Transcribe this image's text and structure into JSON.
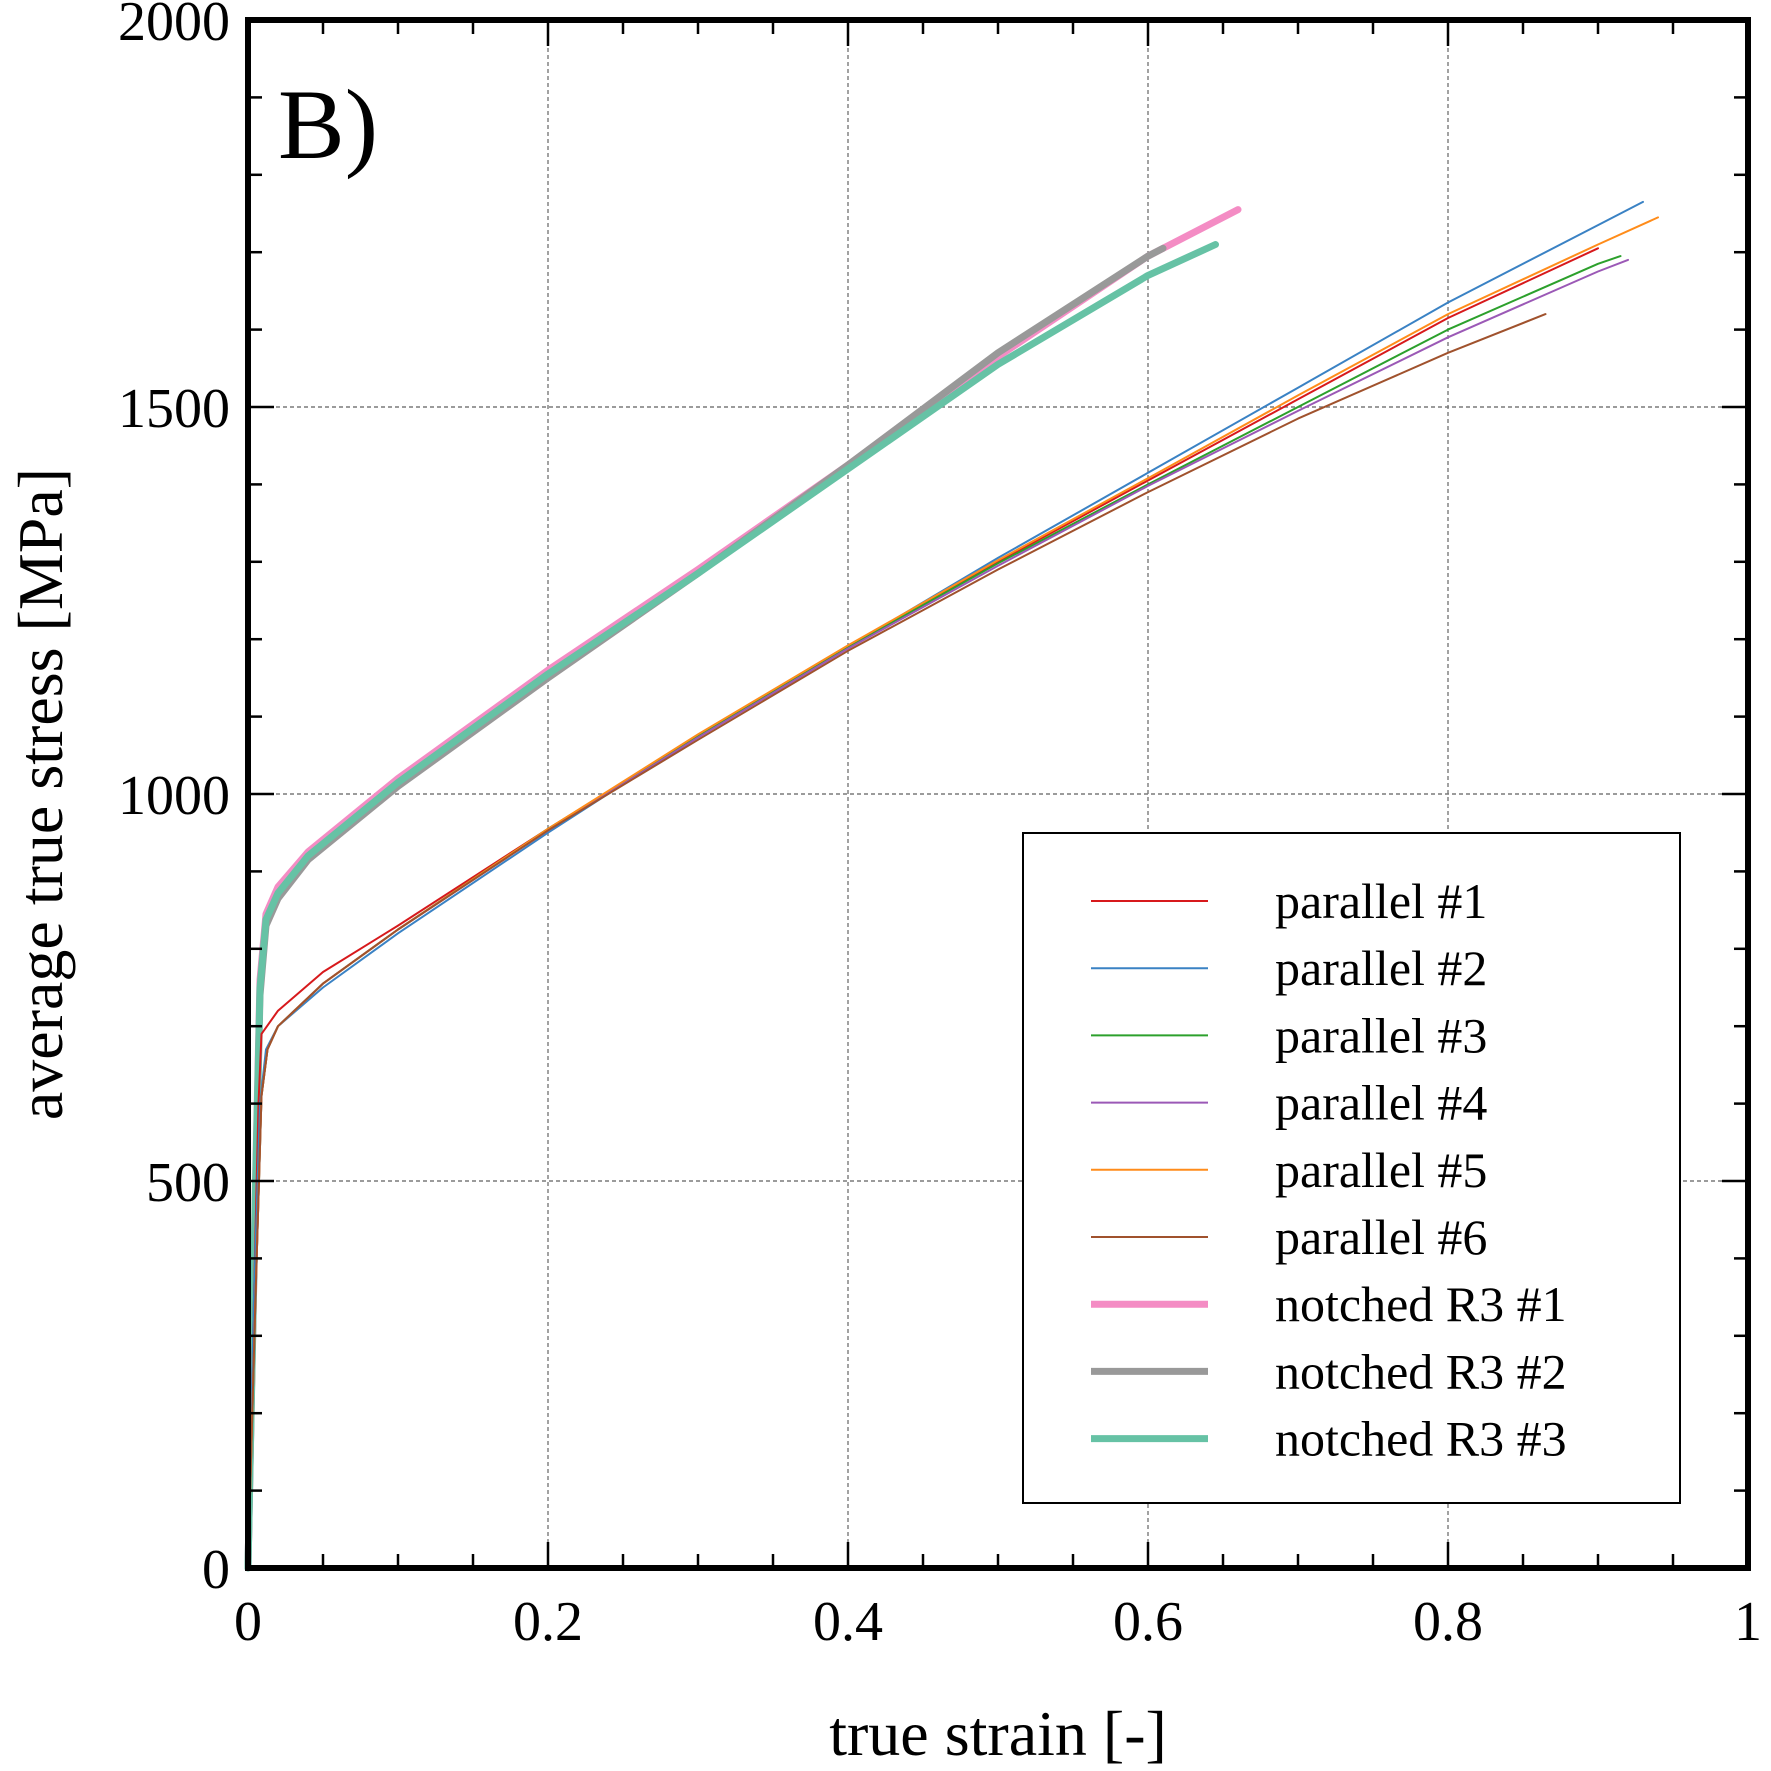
{
  "chart_data": {
    "type": "line",
    "panel_label": "B)",
    "xlabel": "true strain [-]",
    "ylabel": "average true stress [MPa]",
    "xlim": [
      0,
      1
    ],
    "ylim": [
      0,
      2000
    ],
    "x_major_ticks": [
      0,
      0.2,
      0.4,
      0.6,
      0.8,
      1
    ],
    "x_tick_labels": [
      "0",
      "0.2",
      "0.4",
      "0.6",
      "0.8",
      "1"
    ],
    "y_major_ticks": [
      0,
      500,
      1000,
      1500,
      2000
    ],
    "y_tick_labels": [
      "0",
      "500",
      "1000",
      "1500",
      "2000"
    ],
    "x_minor_step": 0.05,
    "y_minor_step": 100,
    "grid": true,
    "legend_position": "lower-right",
    "series": [
      {
        "name": "parallel #1",
        "color": "#d7191c",
        "width": "thin",
        "x": [
          0.0,
          0.004,
          0.007,
          0.009,
          0.02,
          0.05,
          0.1,
          0.2,
          0.3,
          0.4,
          0.5,
          0.6,
          0.7,
          0.8,
          0.9
        ],
        "y": [
          0,
          350,
          600,
          690,
          720,
          770,
          830,
          955,
          1075,
          1190,
          1300,
          1405,
          1510,
          1615,
          1705
        ]
      },
      {
        "name": "parallel #2",
        "color": "#3a82c4",
        "width": "thin",
        "x": [
          0.0,
          0.004,
          0.008,
          0.012,
          0.02,
          0.05,
          0.1,
          0.2,
          0.3,
          0.4,
          0.5,
          0.6,
          0.7,
          0.8,
          0.9,
          0.93
        ],
        "y": [
          0,
          350,
          600,
          670,
          700,
          750,
          820,
          950,
          1075,
          1190,
          1305,
          1415,
          1525,
          1635,
          1735,
          1765
        ]
      },
      {
        "name": "parallel #3",
        "color": "#2ca02c",
        "width": "thin",
        "x": [
          0.0,
          0.005,
          0.009,
          0.013,
          0.02,
          0.05,
          0.1,
          0.2,
          0.3,
          0.4,
          0.5,
          0.6,
          0.7,
          0.8,
          0.9,
          0.915
        ],
        "y": [
          0,
          350,
          610,
          670,
          700,
          755,
          825,
          955,
          1075,
          1190,
          1298,
          1400,
          1500,
          1600,
          1685,
          1695
        ]
      },
      {
        "name": "parallel #4",
        "color": "#9b59b6",
        "width": "thin",
        "x": [
          0.0,
          0.005,
          0.009,
          0.013,
          0.02,
          0.05,
          0.1,
          0.2,
          0.3,
          0.4,
          0.5,
          0.6,
          0.7,
          0.8,
          0.9,
          0.92
        ],
        "y": [
          0,
          350,
          610,
          670,
          700,
          755,
          825,
          953,
          1073,
          1188,
          1295,
          1398,
          1495,
          1590,
          1675,
          1690
        ]
      },
      {
        "name": "parallel #5",
        "color": "#ff8c1a",
        "width": "thin",
        "x": [
          0.0,
          0.005,
          0.009,
          0.013,
          0.02,
          0.05,
          0.1,
          0.2,
          0.3,
          0.4,
          0.5,
          0.6,
          0.7,
          0.8,
          0.9,
          0.94
        ],
        "y": [
          0,
          350,
          610,
          670,
          700,
          755,
          825,
          955,
          1077,
          1192,
          1302,
          1408,
          1515,
          1620,
          1710,
          1745
        ]
      },
      {
        "name": "parallel #6",
        "color": "#a0522d",
        "width": "thin",
        "x": [
          0.0,
          0.005,
          0.009,
          0.013,
          0.02,
          0.05,
          0.1,
          0.2,
          0.3,
          0.4,
          0.5,
          0.6,
          0.7,
          0.8,
          0.865
        ],
        "y": [
          0,
          350,
          610,
          670,
          700,
          755,
          825,
          953,
          1070,
          1185,
          1290,
          1390,
          1485,
          1570,
          1620
        ]
      },
      {
        "name": "notched R3 #1",
        "color": "#f48cc4",
        "width": "thick",
        "x": [
          0.0,
          0.005,
          0.008,
          0.012,
          0.02,
          0.04,
          0.1,
          0.2,
          0.3,
          0.4,
          0.5,
          0.6,
          0.66
        ],
        "y": [
          0,
          500,
          760,
          845,
          880,
          925,
          1020,
          1160,
          1290,
          1425,
          1565,
          1695,
          1755
        ]
      },
      {
        "name": "notched R3 #2",
        "color": "#999999",
        "width": "thick",
        "x": [
          0.0,
          0.005,
          0.008,
          0.012,
          0.02,
          0.04,
          0.1,
          0.2,
          0.3,
          0.4,
          0.5,
          0.6,
          0.61
        ],
        "y": [
          0,
          480,
          740,
          830,
          865,
          915,
          1010,
          1150,
          1285,
          1425,
          1570,
          1695,
          1705
        ]
      },
      {
        "name": "notched R3 #3",
        "color": "#66c2a5",
        "width": "thick",
        "x": [
          0.0,
          0.005,
          0.008,
          0.012,
          0.02,
          0.04,
          0.1,
          0.2,
          0.3,
          0.4,
          0.5,
          0.6,
          0.645
        ],
        "y": [
          0,
          490,
          750,
          838,
          872,
          920,
          1015,
          1155,
          1285,
          1420,
          1555,
          1670,
          1710
        ]
      }
    ]
  }
}
